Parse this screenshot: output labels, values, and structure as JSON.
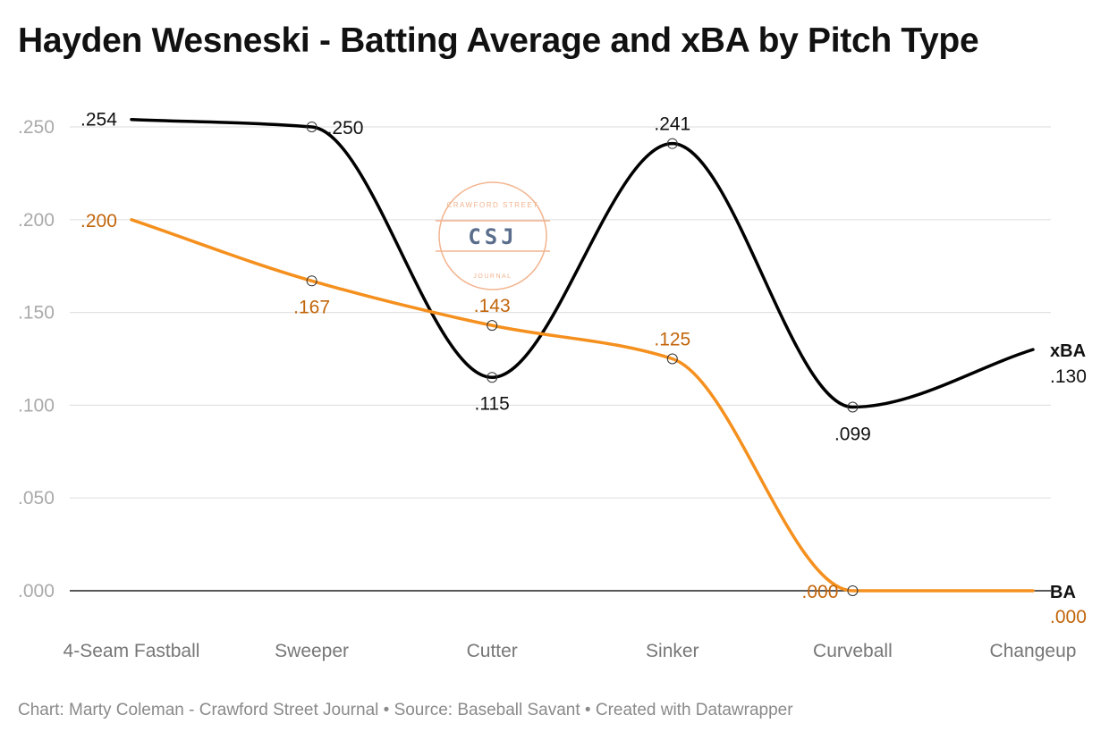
{
  "title": "Hayden Wesneski - Batting Average and xBA by Pitch Type",
  "footer": "Chart: Marty Coleman - Crawford Street Journal • Source: Baseball Savant • Created with Datawrapper",
  "watermark": {
    "top_text": "CRAWFORD STREET",
    "center_text": "CSJ",
    "bottom_text": "JOURNAL",
    "color": "#f2b48f",
    "text_color": "#5a6e8c"
  },
  "colors": {
    "xba": "#000000",
    "ba": "#f5901e",
    "ba_label": "#c2650b",
    "grid": "#e2e2e2",
    "baseline": "#222222"
  },
  "chart_data": {
    "type": "line",
    "categories": [
      "4-Seam Fastball",
      "Sweeper",
      "Cutter",
      "Sinker",
      "Curveball",
      "Changeup"
    ],
    "ylim": [
      0,
      0.25
    ],
    "yticks": [
      ".000",
      ".050",
      ".100",
      ".150",
      ".200",
      ".250"
    ],
    "grid": true,
    "series": [
      {
        "name": "xBA",
        "values": [
          0.254,
          0.25,
          0.115,
          0.241,
          0.099,
          0.13
        ],
        "labels": [
          ".254",
          ".250",
          ".115",
          ".241",
          ".099",
          ".130"
        ]
      },
      {
        "name": "BA",
        "values": [
          0.2,
          0.167,
          0.143,
          0.125,
          0.0,
          0.0
        ],
        "labels": [
          ".200",
          ".167",
          ".143",
          ".125",
          ".000",
          ".000"
        ]
      }
    ]
  }
}
